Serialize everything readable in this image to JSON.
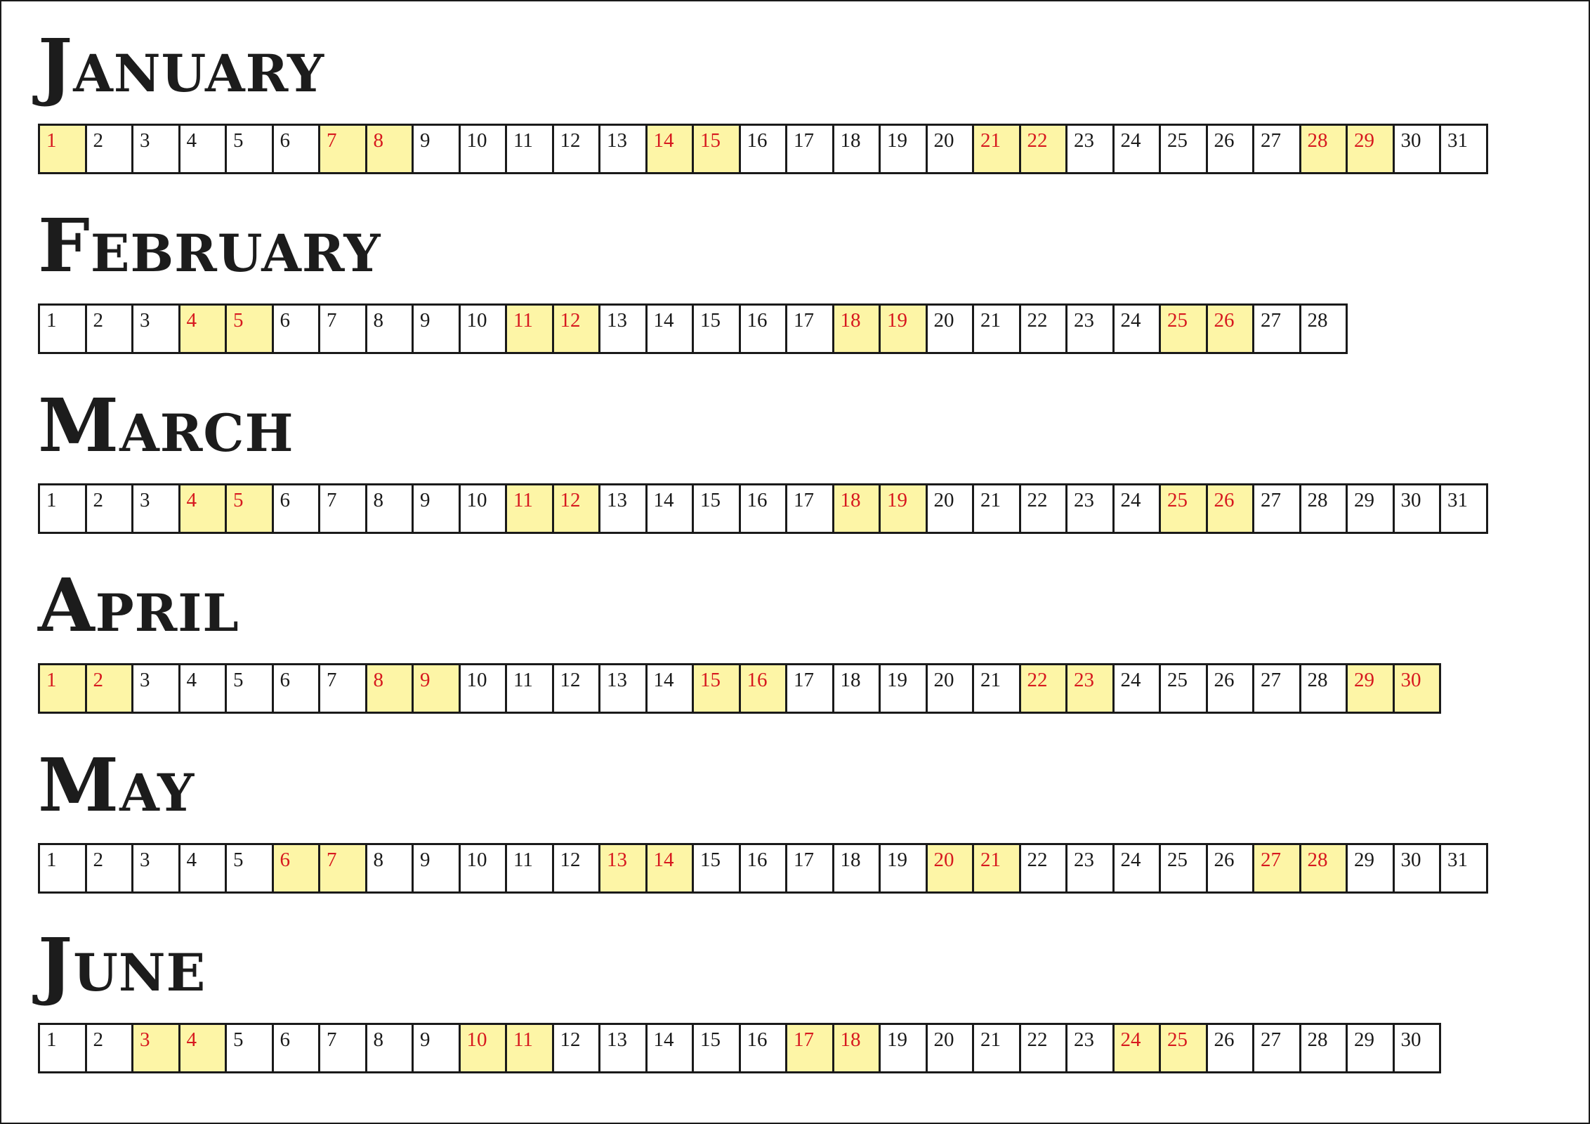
{
  "months": [
    {
      "name": "January",
      "days": 31,
      "weekend": [
        1,
        7,
        8,
        14,
        15,
        21,
        22,
        28,
        29
      ]
    },
    {
      "name": "February",
      "days": 28,
      "weekend": [
        4,
        5,
        11,
        12,
        18,
        19,
        25,
        26
      ]
    },
    {
      "name": "March",
      "days": 31,
      "weekend": [
        4,
        5,
        11,
        12,
        18,
        19,
        25,
        26
      ]
    },
    {
      "name": "April",
      "days": 30,
      "weekend": [
        1,
        2,
        8,
        9,
        15,
        16,
        22,
        23,
        29,
        30
      ]
    },
    {
      "name": "May",
      "days": 31,
      "weekend": [
        6,
        7,
        13,
        14,
        20,
        21,
        27,
        28
      ]
    },
    {
      "name": "June",
      "days": 30,
      "weekend": [
        3,
        4,
        10,
        11,
        17,
        18,
        24,
        25
      ]
    }
  ],
  "colors": {
    "weekend_fill": "#fdf5a6",
    "weekend_text": "#d7191f",
    "weekday_text": "#1a1a1a",
    "border": "#1a1a1a"
  }
}
